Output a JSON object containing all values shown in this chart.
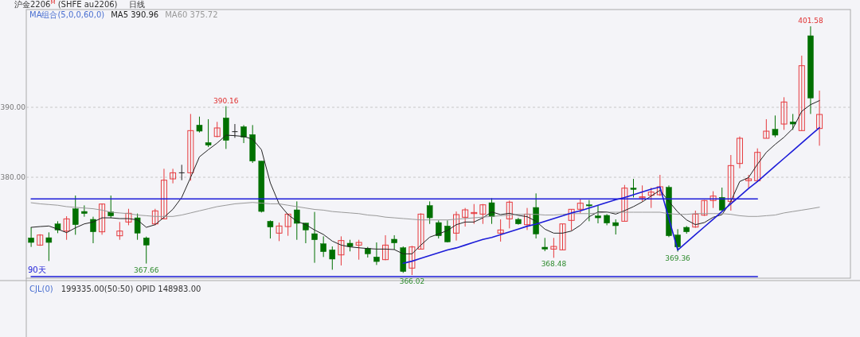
{
  "chart_data": {
    "type": "candlestick",
    "title": "沪金2206$^{M}$ (SHFE au2206)",
    "categories": [
      null,
      null,
      null,
      null,
      null,
      null,
      null,
      null,
      null,
      null,
      null,
      null,
      null,
      null,
      null,
      null,
      null,
      null,
      null,
      null,
      null,
      null,
      null,
      null,
      null,
      null,
      null,
      null,
      null,
      null,
      null,
      null,
      null,
      null,
      null,
      null,
      null,
      null,
      null,
      null,
      null,
      null,
      null,
      null,
      null,
      null,
      null,
      null,
      null,
      null,
      null,
      null,
      null,
      null,
      null,
      null,
      null,
      null,
      null,
      null,
      null,
      null,
      null,
      null,
      null,
      null,
      null,
      null,
      null,
      null,
      null,
      null,
      null,
      null,
      null,
      null,
      null,
      null,
      null,
      null,
      null,
      null,
      null,
      null,
      null,
      null,
      null,
      null,
      null,
      null
    ],
    "ohlc": [
      [
        371.33,
        372.84,
        370.04,
        370.68
      ],
      [
        370.3,
        371.86,
        370.19,
        371.74
      ],
      [
        371.36,
        372.12,
        368.03,
        370.68
      ],
      [
        373.33,
        373.71,
        372.01,
        372.46
      ],
      [
        372.31,
        374.43,
        371.06,
        374.05
      ],
      [
        375.49,
        377.39,
        371.78,
        373.22
      ],
      [
        375.11,
        375.98,
        374.36,
        374.81
      ],
      [
        373.98,
        374.36,
        370.57,
        372.2
      ],
      [
        372.2,
        376.25,
        371.78,
        376.17
      ],
      [
        375.04,
        377.39,
        374.17,
        374.47
      ],
      [
        371.63,
        373.6,
        371.06,
        372.31
      ],
      [
        373.6,
        375.49,
        373.14,
        374.85
      ],
      [
        374.2,
        374.81,
        371.06,
        372.01
      ],
      [
        371.33,
        371.52,
        367.66,
        370.3
      ],
      [
        373.33,
        375.49,
        373.14,
        375.19
      ],
      [
        374.05,
        381.21,
        374.05,
        379.58
      ],
      [
        379.77,
        381.21,
        379.13,
        380.64
      ],
      [
        380.64,
        381.78,
        379.58,
        380.64
      ],
      [
        380.64,
        389.05,
        379.5,
        386.67
      ],
      [
        387.46,
        388.67,
        386.4,
        386.59
      ],
      [
        384.96,
        388.3,
        384.32,
        384.58
      ],
      [
        385.83,
        387.92,
        385.72,
        387.05
      ],
      [
        388.48,
        390.16,
        384.05,
        385.27
      ],
      [
        386.52,
        387.61,
        385.64,
        386.52
      ],
      [
        387.23,
        387.46,
        384.89,
        385.72
      ],
      [
        386.1,
        387.46,
        382.05,
        382.31
      ],
      [
        382.31,
        382.31,
        374.96,
        375.11
      ],
      [
        373.71,
        373.83,
        371.25,
        372.88
      ],
      [
        372.01,
        373.52,
        370.87,
        373.03
      ],
      [
        372.95,
        374.73,
        371.63,
        374.73
      ],
      [
        375.34,
        376.55,
        371.06,
        373.41
      ],
      [
        373.45,
        373.45,
        370.57,
        372.46
      ],
      [
        371.93,
        375.04,
        367.77,
        371.06
      ],
      [
        370.49,
        371.55,
        368.6,
        369.36
      ],
      [
        369.62,
        370.11,
        366.78,
        368.3
      ],
      [
        368.9,
        371.55,
        367.39,
        370.95
      ],
      [
        370.57,
        371.06,
        369.4,
        370.11
      ],
      [
        370.3,
        371.06,
        368.22,
        370.68
      ],
      [
        369.81,
        370.04,
        368.52,
        369.05
      ],
      [
        368.6,
        370.68,
        367.46,
        367.95
      ],
      [
        368.22,
        371.71,
        368.14,
        370.3
      ],
      [
        371.14,
        371.71,
        369.66,
        370.61
      ],
      [
        369.92,
        370.11,
        366.33,
        366.52
      ],
      [
        367.01,
        370.19,
        366.02,
        370.04
      ],
      [
        369.73,
        374.85,
        369.73,
        374.73
      ],
      [
        375.95,
        376.55,
        373.33,
        374.2
      ],
      [
        373.52,
        373.83,
        371.25,
        371.63
      ],
      [
        373.03,
        373.83,
        370.68,
        370.76
      ],
      [
        372.01,
        375.11,
        370.95,
        374.66
      ],
      [
        374.28,
        375.61,
        372.95,
        375.34
      ],
      [
        374.81,
        376.17,
        373.33,
        374.96
      ],
      [
        374.73,
        376.17,
        373.33,
        376.06
      ],
      [
        376.36,
        377.01,
        373.33,
        374.36
      ],
      [
        372.01,
        373.98,
        370.8,
        372.46
      ],
      [
        374.05,
        376.67,
        372.69,
        376.44
      ],
      [
        373.98,
        374.2,
        373.22,
        373.33
      ],
      [
        373.22,
        375.61,
        372.46,
        374.73
      ],
      [
        375.68,
        377.69,
        371.25,
        371.89
      ],
      [
        370.0,
        371.33,
        369.43,
        369.73
      ],
      [
        369.73,
        371.33,
        368.48,
        370.11
      ],
      [
        369.62,
        373.33,
        369.62,
        373.33
      ],
      [
        373.83,
        375.42,
        372.39,
        375.42
      ],
      [
        375.42,
        376.86,
        374.85,
        376.29
      ],
      [
        376.06,
        376.74,
        373.71,
        375.91
      ],
      [
        374.47,
        375.91,
        373.41,
        374.2
      ],
      [
        374.55,
        374.73,
        373.14,
        373.45
      ],
      [
        373.52,
        373.98,
        371.82,
        373.07
      ],
      [
        373.71,
        378.9,
        373.71,
        378.45
      ],
      [
        378.45,
        379.77,
        377.12,
        378.26
      ],
      [
        377.05,
        378.83,
        376.55,
        377.2
      ],
      [
        377.42,
        378.52,
        375.61,
        377.88
      ],
      [
        377.5,
        380.34,
        377.31,
        378.64
      ],
      [
        378.56,
        378.83,
        371.44,
        371.63
      ],
      [
        371.74,
        372.58,
        369.36,
        370.04
      ],
      [
        372.84,
        373.03,
        371.93,
        372.2
      ],
      [
        372.88,
        375.23,
        372.77,
        374.73
      ],
      [
        374.58,
        376.74,
        374.47,
        376.67
      ],
      [
        376.67,
        378.0,
        375.61,
        377.31
      ],
      [
        377.12,
        378.52,
        375.23,
        375.3
      ],
      [
        376.55,
        383.18,
        375.23,
        381.67
      ],
      [
        381.97,
        385.83,
        381.29,
        385.57
      ],
      [
        379.51,
        380.34,
        378.45,
        379.77
      ],
      [
        379.51,
        384.13,
        379.39,
        383.56
      ],
      [
        385.57,
        388.3,
        385.57,
        386.59
      ],
      [
        386.86,
        388.83,
        385.72,
        386.02
      ],
      [
        387.61,
        391.44,
        386.78,
        390.76
      ],
      [
        387.92,
        389.05,
        386.78,
        387.61
      ],
      [
        386.67,
        397.39,
        386.67,
        395.95
      ],
      [
        400.23,
        401.58,
        389.05,
        391.33
      ],
      [
        386.97,
        392.39,
        384.51,
        388.98
      ]
    ],
    "series": [
      {
        "name": "MA5 390.96",
        "type": "line",
        "color": "#222222",
        "values": [
          372.84,
          372.95,
          373.03,
          372.58,
          372.08,
          372.77,
          373.33,
          373.6,
          374.2,
          374.2,
          374.09,
          374.09,
          373.9,
          372.84,
          373.22,
          374.28,
          375.42,
          377.12,
          379.96,
          382.92,
          383.94,
          384.89,
          386.02,
          385.95,
          385.83,
          385.45,
          383.94,
          379.2,
          376.17,
          374.66,
          373.71,
          373.22,
          372.46,
          371.82,
          370.87,
          370.3,
          370.04,
          369.92,
          369.81,
          369.73,
          369.73,
          369.66,
          369.05,
          369.05,
          370.3,
          371.44,
          371.89,
          372.39,
          373.22,
          373.6,
          373.6,
          374.2,
          375.04,
          374.66,
          374.85,
          374.55,
          374.36,
          373.71,
          372.58,
          372.01,
          372.01,
          372.31,
          373.14,
          374.36,
          375.04,
          375.04,
          374.73,
          375.23,
          375.8,
          376.48,
          377.31,
          378.14,
          376.55,
          375.04,
          373.9,
          373.22,
          373.52,
          374.28,
          374.66,
          376.55,
          379.39,
          379.96,
          381.86,
          383.56,
          384.7,
          385.72,
          386.97,
          389.43,
          390.38,
          390.96
        ]
      },
      {
        "name": "MA60 375.72",
        "type": "line",
        "color": "#999999",
        "values": [
          376.36,
          376.2,
          376.1,
          376.0,
          375.8,
          375.7,
          375.6,
          375.5,
          375.3,
          375.0,
          374.9,
          374.8,
          374.6,
          374.5,
          374.4,
          374.4,
          374.4,
          374.6,
          374.9,
          375.2,
          375.5,
          375.8,
          376.0,
          376.2,
          376.3,
          376.4,
          376.3,
          376.2,
          376.2,
          376.0,
          375.8,
          375.6,
          375.4,
          375.3,
          375.1,
          375.0,
          374.9,
          374.8,
          374.6,
          374.5,
          374.3,
          374.2,
          374.1,
          374.0,
          373.9,
          373.9,
          373.9,
          373.9,
          374.0,
          374.1,
          374.2,
          374.3,
          374.4,
          374.5,
          374.6,
          374.7,
          374.7,
          374.7,
          374.6,
          374.6,
          374.7,
          374.8,
          374.8,
          374.8,
          374.9,
          375.0,
          375.0,
          375.0,
          375.0,
          375.0,
          375.0,
          375.0,
          374.8,
          374.7,
          374.7,
          374.8,
          374.8,
          374.8,
          374.8,
          374.7,
          374.5,
          374.4,
          374.4,
          374.5,
          374.6,
          374.9,
          375.1,
          375.3,
          375.5,
          375.72
        ]
      },
      {
        "type": "line",
        "color": "#1c1cd8",
        "values": [
          376.9,
          376.9,
          376.9,
          376.9,
          376.9,
          376.9,
          376.9,
          376.9,
          376.9,
          376.9,
          376.9,
          376.9,
          376.9,
          376.9,
          376.9,
          376.9,
          376.9,
          376.9,
          376.9,
          376.9,
          376.9,
          376.9,
          376.9,
          376.9,
          376.9,
          376.9,
          376.9,
          376.9,
          376.9,
          376.9,
          376.9,
          376.9,
          376.9,
          376.9,
          376.9,
          376.9,
          376.9,
          376.9,
          376.9,
          376.9,
          376.9,
          376.9,
          376.9,
          376.9,
          376.9,
          376.9,
          376.9,
          376.9,
          376.9,
          376.9,
          376.9,
          376.9,
          376.9,
          376.9,
          376.9,
          376.9,
          376.9,
          376.9,
          376.9,
          376.9,
          376.9,
          376.9,
          376.9,
          376.9,
          376.9,
          376.9,
          376.9,
          376.9,
          376.9,
          376.9,
          376.9,
          376.9,
          376.9,
          376.9,
          376.9,
          376.9,
          376.9,
          376.9,
          376.9,
          376.9,
          376.9,
          376.9,
          376.9,
          null,
          null,
          null,
          null,
          null,
          null,
          null
        ]
      },
      {
        "type": "line",
        "color": "#1c1cd8",
        "values": [
          365.8,
          365.8,
          365.8,
          365.8,
          365.8,
          365.8,
          365.8,
          365.8,
          365.8,
          365.8,
          365.8,
          365.8,
          365.8,
          365.8,
          365.8,
          365.8,
          365.8,
          365.8,
          365.8,
          365.8,
          365.8,
          365.8,
          365.8,
          365.8,
          365.8,
          365.8,
          365.8,
          365.8,
          365.8,
          365.8,
          365.8,
          365.8,
          365.8,
          365.8,
          365.8,
          365.8,
          365.8,
          365.8,
          365.8,
          365.8,
          365.8,
          365.8,
          365.8,
          365.8,
          365.8,
          365.8,
          365.8,
          365.8,
          365.8,
          365.8,
          365.8,
          365.8,
          365.8,
          365.8,
          365.8,
          365.8,
          365.8,
          365.8,
          365.8,
          365.8,
          365.8,
          365.8,
          365.8,
          365.8,
          365.8,
          365.8,
          365.8,
          365.8,
          365.8,
          365.8,
          365.8,
          365.8,
          365.8,
          365.8,
          365.8,
          365.8,
          365.8,
          365.8,
          365.8,
          365.8,
          365.8,
          365.8,
          365.8,
          null,
          null,
          null,
          null,
          null,
          null,
          null
        ]
      },
      {
        "type": "line",
        "color": "#1c1cd8",
        "values": [
          null,
          null,
          null,
          null,
          null,
          null,
          null,
          null,
          null,
          null,
          null,
          null,
          null,
          null,
          null,
          null,
          null,
          null,
          null,
          null,
          null,
          null,
          null,
          null,
          null,
          null,
          null,
          null,
          null,
          null,
          null,
          null,
          null,
          null,
          null,
          null,
          null,
          null,
          null,
          null,
          null,
          null,
          367.7,
          368.0,
          368.4,
          368.8,
          369.2,
          369.6,
          369.9,
          370.3,
          370.7,
          371.1,
          371.4,
          371.8,
          372.2,
          372.6,
          373.0,
          373.3,
          373.7,
          374.1,
          374.5,
          374.9,
          375.2,
          375.6,
          376.0,
          376.4,
          376.8,
          377.1,
          377.5,
          377.9,
          378.3,
          378.6,
          374.1,
          369.6,
          370.7,
          371.8,
          372.9,
          374.0,
          375.1,
          376.2,
          377.3,
          378.4,
          379.4,
          380.5,
          381.6,
          382.7,
          383.8,
          384.9,
          386.0,
          387.1
        ]
      }
    ],
    "ylim": [
      365.57,
      403.98
    ],
    "yticks": [
      {
        "value": 380,
        "label": "380.00"
      },
      {
        "value": 390,
        "label": "390.00"
      }
    ],
    "grid": "y",
    "legend": "top left",
    "tick_labels": "y",
    "annotations": [
      "日线",
      "MA组合(5,0,0,60,0)",
      "90天",
      "CJL(0)",
      "199335.00(50:50)  OPID 148983.00",
      {
        "text": "390.16",
        "y": 390.16
      },
      {
        "text": "367.66",
        "y": 367.66
      },
      {
        "text": "366.02",
        "y": 366.02
      },
      {
        "text": "368.48",
        "y": 368.48
      },
      {
        "text": "369.36",
        "y": 369.36
      },
      {
        "text": "401.58",
        "y": 401.58
      }
    ]
  }
}
